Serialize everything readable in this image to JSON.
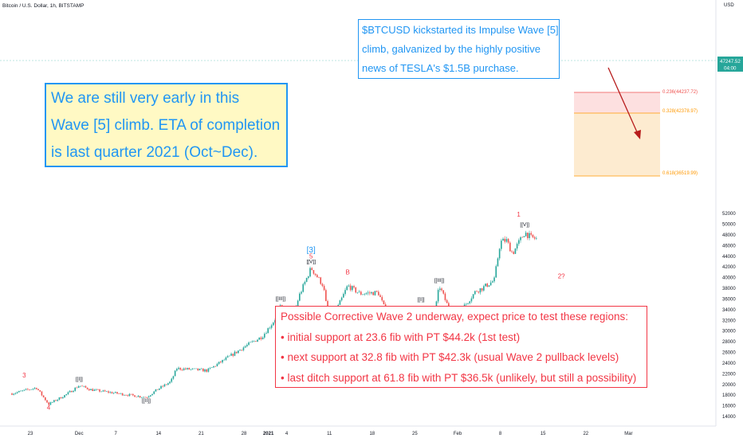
{
  "header": {
    "symbol_title": "Bitcoin / U.S. Dollar, 1h, BITSTAMP",
    "currency": "USD"
  },
  "price_tag": {
    "price": "47247.52",
    "countdown": "04:00",
    "color": "#26a69a"
  },
  "colors": {
    "up": "#26a69a",
    "down": "#ef5350",
    "blue_text": "#2196f3",
    "red_text": "#f23645",
    "fib_zone_1": "#fde0e0",
    "fib_zone_2": "#fdebd0"
  },
  "annotations": {
    "left_box": [
      "We are still very early in this",
      "Wave [5] climb. ETA of completion",
      "is last quarter 2021 (Oct~Dec)."
    ],
    "top_box": [
      "$BTCUSD kickstarted its Impulse Wave [5]",
      "climb, galvanized by the highly positive",
      "news of TESLA's $1.5B purchase."
    ],
    "bottom_box": [
      "Possible Corrective Wave 2 underway, expect price to test these regions:",
      "• initial support at 23.6 fib with PT $44.2k (1st test)",
      "• next support at 32.8 fib with PT $42.3k (usual Wave 2 pullback levels)",
      "• last ditch support at 61.8 fib with PT $36.5k (unlikely, but still a possibility)"
    ]
  },
  "chart_data": {
    "type": "candlestick",
    "title": "Bitcoin / U.S. Dollar, 1h, BITSTAMP",
    "y_ticks": [
      14000,
      16000,
      18000,
      20000,
      22000,
      24000,
      26000,
      28000,
      30000,
      32000,
      34000,
      36000,
      38000,
      40000,
      42000,
      44000,
      46000,
      48000,
      50000,
      52000
    ],
    "ylim": [
      13100,
      52700
    ],
    "x_ticks": [
      "23",
      "Dec",
      "7",
      "14",
      "21",
      "28",
      "2021",
      "4",
      "11",
      "18",
      "25",
      "Feb",
      "8",
      "15",
      "22",
      "Mar"
    ],
    "price_path": [
      [
        "Nov 20",
        18300
      ],
      [
        "Nov 24",
        19400
      ],
      [
        "Nov 26",
        16300
      ],
      [
        "Nov 29",
        18200
      ],
      [
        "Dec 1",
        19800
      ],
      [
        "Dec 3",
        19000
      ],
      [
        "Dec 8",
        18200
      ],
      [
        "Dec 12",
        17600
      ],
      [
        "Dec 14",
        19200
      ],
      [
        "Dec 16",
        20500
      ],
      [
        "Dec 17",
        23000
      ],
      [
        "Dec 22",
        22600
      ],
      [
        "Dec 26",
        25500
      ],
      [
        "Dec 28",
        27000
      ],
      [
        "Dec 31",
        29000
      ],
      [
        "Jan 2",
        32000
      ],
      [
        "Jan 3",
        34500
      ],
      [
        "Jan 4",
        28000
      ],
      [
        "Jan 6",
        36500
      ],
      [
        "Jan 8",
        41800
      ],
      [
        "Jan 10",
        38500
      ],
      [
        "Jan 11",
        31000
      ],
      [
        "Jan 13",
        36000
      ],
      [
        "Jan 14",
        38500
      ],
      [
        "Jan 16",
        37000
      ],
      [
        "Jan 19",
        37200
      ],
      [
        "Jan 21",
        31500
      ],
      [
        "Jan 22",
        29000
      ],
      [
        "Jan 24",
        33200
      ],
      [
        "Jan 26",
        31000
      ],
      [
        "Jan 28",
        31500
      ],
      [
        "Jan 29",
        38500
      ],
      [
        "Jan 31",
        33000
      ],
      [
        "Feb 2",
        34500
      ],
      [
        "Feb 4",
        37500
      ],
      [
        "Feb 5",
        38000
      ],
      [
        "Feb 7",
        39500
      ],
      [
        "Feb 8",
        46700
      ],
      [
        "Feb 9",
        47000
      ],
      [
        "Feb 10",
        44500
      ],
      [
        "Feb 12",
        48500
      ],
      [
        "Feb 13",
        47500
      ],
      [
        "Feb 14",
        47250
      ]
    ],
    "fib_levels": [
      {
        "label": "0.236(44237.72)",
        "value": 44237.72
      },
      {
        "label": "0.328(42378.97)",
        "value": 42378.97
      },
      {
        "label": "0.618(36519.99)",
        "value": 36519.99
      }
    ],
    "wave_labels": [
      {
        "text": "3",
        "date": "Nov 22",
        "price": 21300,
        "color": "red"
      },
      {
        "text": "4",
        "date": "Nov 26",
        "price": 15300,
        "color": "red"
      },
      {
        "text": "[[I]]",
        "date": "Dec 1",
        "price": 20700,
        "color": "dark"
      },
      {
        "text": "[[II]]",
        "date": "Dec 12",
        "price": 16700,
        "color": "dark"
      },
      {
        "text": "[[III]]",
        "date": "Jan 3",
        "price": 35800,
        "color": "dark"
      },
      {
        "text": "[[IV]]",
        "date": "Jan 4",
        "price": 26600,
        "color": "dark"
      },
      {
        "text": "[3]",
        "date": "Jan 8",
        "price": 44700,
        "color": "blue"
      },
      {
        "text": "5",
        "date": "Jan 8",
        "price": 43600,
        "color": "red"
      },
      {
        "text": "[[V]]",
        "date": "Jan 8",
        "price": 42700,
        "color": "dark"
      },
      {
        "text": "A",
        "date": "Jan 11",
        "price": 29700,
        "color": "red"
      },
      {
        "text": "B",
        "date": "Jan 14",
        "price": 40600,
        "color": "red"
      },
      {
        "text": "C",
        "date": "Jan 22",
        "price": 28000,
        "color": "red"
      },
      {
        "text": "[4]",
        "date": "Jan 22",
        "price": 26800,
        "color": "blue"
      },
      {
        "text": "[[I]]",
        "date": "Jan 26",
        "price": 35600,
        "color": "dark"
      },
      {
        "text": "[[II]]",
        "date": "Jan 28",
        "price": 28900,
        "color": "dark"
      },
      {
        "text": "[[III]]",
        "date": "Jan 29",
        "price": 39200,
        "color": "dark"
      },
      {
        "text": "[[IV]]",
        "date": "Feb 2",
        "price": 31700,
        "color": "dark"
      },
      {
        "text": "1",
        "date": "Feb 11",
        "price": 51400,
        "color": "red"
      },
      {
        "text": "[[V]]",
        "date": "Feb 12",
        "price": 49600,
        "color": "dark"
      },
      {
        "text": "2?",
        "date": "Feb 18",
        "price": 39900,
        "color": "red"
      }
    ]
  }
}
